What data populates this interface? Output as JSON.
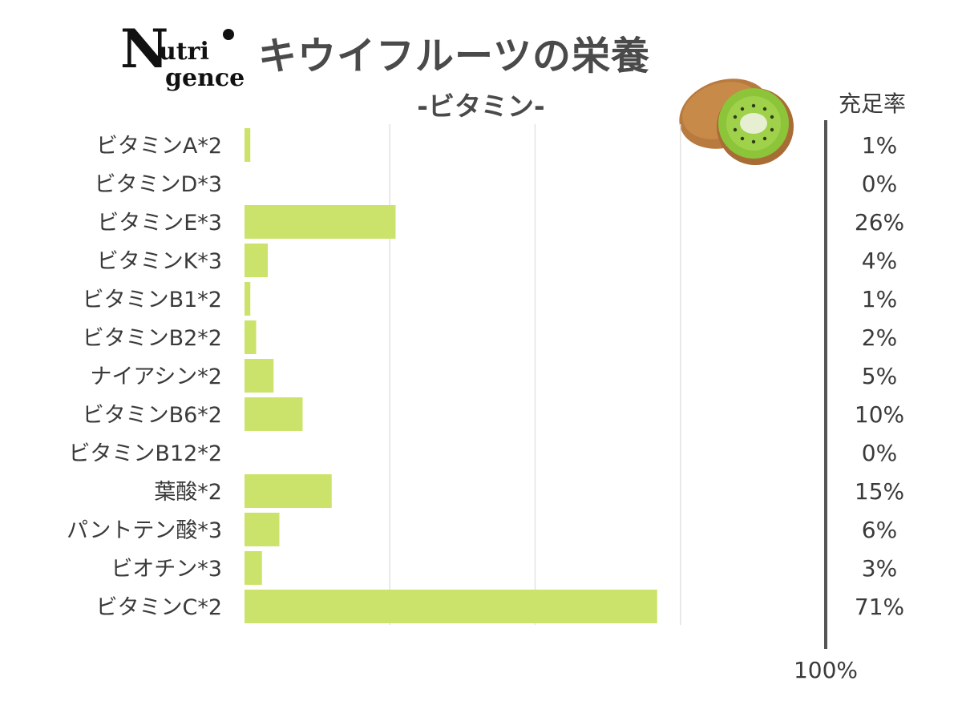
{
  "logo": {
    "big": "N",
    "line1": "utri",
    "line2": "gence"
  },
  "column_header": "充足率",
  "icons": {
    "kiwi": "kiwi-fruit-icon"
  },
  "colors": {
    "bar": "#cbe36a",
    "grid": "#e2e2e2",
    "axis": "#555555",
    "text": "#3a3a3a"
  },
  "chart_data": {
    "type": "bar",
    "orientation": "horizontal",
    "title": "キウイフルーツの栄養",
    "subtitle": "-ビタミン-",
    "categories": [
      "ビタミンA*2",
      "ビタミンD*3",
      "ビタミンE*3",
      "ビタミンK*3",
      "ビタミンB1*2",
      "ビタミンB2*2",
      "ナイアシン*2",
      "ビタミンB6*2",
      "ビタミンB12*2",
      "葉酸*2",
      "パントテン酸*3",
      "ビオチン*3",
      "ビタミンC*2"
    ],
    "values": [
      1,
      0,
      26,
      4,
      1,
      2,
      5,
      10,
      0,
      15,
      6,
      3,
      71
    ],
    "value_labels": [
      "1%",
      "0%",
      "26%",
      "4%",
      "1%",
      "2%",
      "5%",
      "10%",
      "0%",
      "15%",
      "6%",
      "3%",
      "71%"
    ],
    "xlim": [
      0,
      100
    ],
    "max_label": "100%",
    "grid": true
  }
}
